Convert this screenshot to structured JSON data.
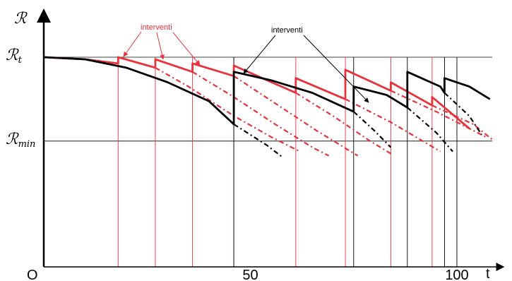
{
  "colors": {
    "red": "#e8323c",
    "black": "#000000",
    "grid": "#000000"
  },
  "chart_data": {
    "type": "line",
    "title": "",
    "xlabel": "t",
    "ylabel": "ℛ",
    "origin_label": "O",
    "xlim": [
      0,
      110
    ],
    "ylim": [
      0,
      1.3
    ],
    "x_ticks": [
      {
        "value": 50,
        "label": "50"
      },
      {
        "value": 100,
        "label": "100"
      }
    ],
    "y_levels": [
      {
        "id": "rt",
        "value": 1.0,
        "main": "ℛ",
        "sub": "t"
      },
      {
        "id": "rmin",
        "value": 0.6,
        "main": "ℛ",
        "sub": "min"
      }
    ],
    "annotations": [
      {
        "id": "ann-red",
        "text": "interventi",
        "color": "red"
      },
      {
        "id": "ann-black",
        "text": "interventi",
        "color": "black"
      }
    ],
    "red_interventions": [
      18,
      27,
      36,
      46,
      61,
      73,
      84,
      94
    ],
    "black_interventions": [
      46,
      75,
      88,
      97,
      100
    ],
    "series": [
      {
        "name": "",
        "color": "red",
        "style": "solid",
        "points": [
          [
            0,
            1
          ],
          [
            10,
            0.99
          ],
          [
            18,
            0.97
          ],
          [
            18,
            1
          ],
          [
            27,
            0.95
          ],
          [
            27,
            0.99
          ],
          [
            36,
            0.93
          ],
          [
            36,
            0.97
          ],
          [
            46,
            0.91
          ],
          [
            46,
            0.96
          ],
          [
            61,
            0.83
          ],
          [
            61,
            0.9
          ],
          [
            73,
            0.8
          ],
          [
            73,
            0.94
          ],
          [
            84,
            0.84
          ],
          [
            84,
            0.88
          ],
          [
            94,
            0.77
          ],
          [
            94,
            0.81
          ],
          [
            103,
            0.66
          ]
        ]
      },
      {
        "name": "",
        "color": "red",
        "style": "dashed",
        "points": [
          [
            27,
            0.95
          ],
          [
            35,
            0.86
          ],
          [
            46,
            0.72
          ],
          [
            55,
            0.62
          ],
          [
            62,
            0.55
          ]
        ]
      },
      {
        "name": "",
        "color": "red",
        "style": "dashed",
        "points": [
          [
            36,
            0.93
          ],
          [
            46,
            0.81
          ],
          [
            56,
            0.68
          ],
          [
            65,
            0.57
          ],
          [
            69,
            0.53
          ]
        ]
      },
      {
        "name": "",
        "color": "red",
        "style": "dashed",
        "points": [
          [
            46,
            0.91
          ],
          [
            56,
            0.78
          ],
          [
            66,
            0.65
          ],
          [
            76,
            0.53
          ]
        ]
      },
      {
        "name": "",
        "color": "red",
        "style": "dashed",
        "points": [
          [
            61,
            0.83
          ],
          [
            70,
            0.72
          ],
          [
            79,
            0.6
          ],
          [
            84,
            0.54
          ]
        ]
      },
      {
        "name": "",
        "color": "red",
        "style": "dashed",
        "points": [
          [
            73,
            0.8
          ],
          [
            84,
            0.69
          ],
          [
            96,
            0.55
          ]
        ]
      },
      {
        "name": "",
        "color": "red",
        "style": "dashed",
        "points": [
          [
            84,
            0.84
          ],
          [
            95,
            0.74
          ],
          [
            107,
            0.62
          ]
        ]
      },
      {
        "name": "",
        "color": "red",
        "style": "dashed",
        "points": [
          [
            94,
            0.77
          ],
          [
            104,
            0.68
          ],
          [
            109,
            0.6
          ]
        ]
      },
      {
        "name": "",
        "color": "black",
        "style": "solid",
        "points": [
          [
            0,
            1
          ],
          [
            10,
            0.99
          ],
          [
            20,
            0.95
          ],
          [
            30,
            0.88
          ],
          [
            40,
            0.79
          ],
          [
            46,
            0.68
          ],
          [
            46,
            0.93
          ],
          [
            55,
            0.89
          ],
          [
            65,
            0.83
          ],
          [
            75,
            0.74
          ],
          [
            75,
            0.86
          ],
          [
            83,
            0.82
          ],
          [
            88,
            0.76
          ],
          [
            88,
            0.93
          ],
          [
            96,
            0.86
          ],
          [
            97,
            0.83
          ],
          [
            97,
            0.9
          ],
          [
            103,
            0.86
          ],
          [
            108,
            0.8
          ]
        ]
      },
      {
        "name": "",
        "color": "black",
        "style": "dashed",
        "points": [
          [
            46,
            0.68
          ],
          [
            54,
            0.58
          ],
          [
            58,
            0.52
          ]
        ]
      },
      {
        "name": "",
        "color": "black",
        "style": "dashed",
        "points": [
          [
            75,
            0.74
          ],
          [
            80,
            0.65
          ],
          [
            84,
            0.57
          ]
        ]
      },
      {
        "name": "",
        "color": "black",
        "style": "dashed",
        "points": [
          [
            88,
            0.76
          ],
          [
            95,
            0.64
          ],
          [
            99,
            0.55
          ]
        ]
      },
      {
        "name": "",
        "color": "black",
        "style": "dashed",
        "points": [
          [
            97,
            0.83
          ],
          [
            103,
            0.72
          ],
          [
            106,
            0.63
          ]
        ]
      }
    ]
  }
}
